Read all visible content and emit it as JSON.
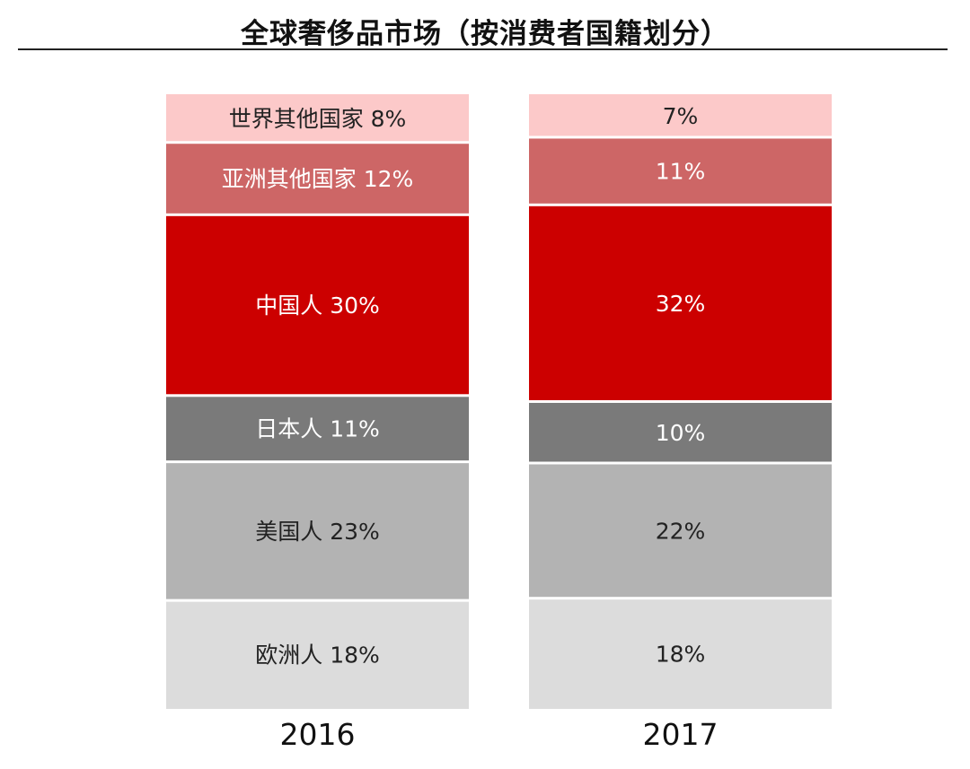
{
  "chart_data": {
    "type": "bar",
    "stacked": true,
    "percent_stacked": true,
    "title": "全球奢侈品市场（按消费者国籍划分）",
    "xlabel": "",
    "ylabel": "",
    "categories": [
      "2016",
      "2017"
    ],
    "series": [
      {
        "name": "欧洲人",
        "values": [
          18,
          18
        ],
        "labels": [
          "18%",
          "18%"
        ],
        "color": "#dcdcdc",
        "text_color": "#222222"
      },
      {
        "name": "美国人",
        "values": [
          23,
          22
        ],
        "labels": [
          "23%",
          "22%"
        ],
        "color": "#b3b3b3",
        "text_color": "#222222"
      },
      {
        "name": "日本人",
        "values": [
          11,
          10
        ],
        "labels": [
          "11%",
          "10%"
        ],
        "color": "#7a7a7a",
        "text_color": "#ffffff"
      },
      {
        "name": "中国人",
        "values": [
          30,
          32
        ],
        "labels": [
          "30%",
          "32%"
        ],
        "color": "#cc0000",
        "text_color": "#ffffff"
      },
      {
        "name": "亚洲其他国家",
        "values": [
          12,
          11
        ],
        "labels": [
          "12%",
          "11%"
        ],
        "color": "#cd6666",
        "text_color": "#ffffff"
      },
      {
        "name": "世界其他国家",
        "values": [
          8,
          7
        ],
        "labels": [
          "8%",
          "7%"
        ],
        "color": "#fcc9c9",
        "text_color": "#222222"
      }
    ],
    "series_names_shown_on_category": "2016",
    "legend": "none",
    "grid": false
  }
}
